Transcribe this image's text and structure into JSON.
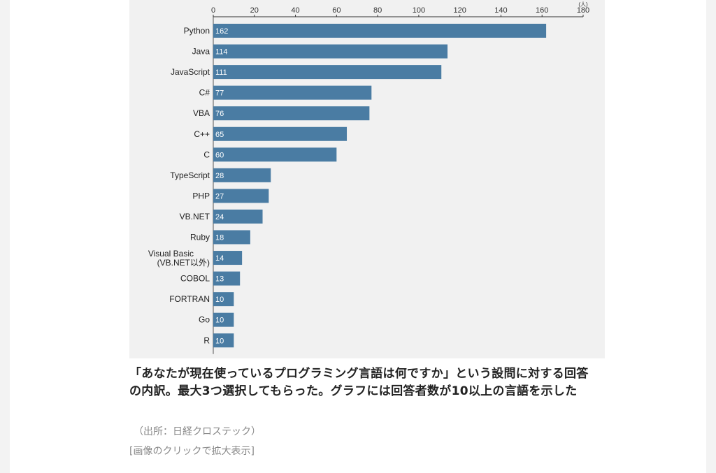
{
  "chart_data": {
    "type": "bar",
    "orientation": "horizontal",
    "unit_label": "(人)",
    "categories": [
      "Python",
      "Java",
      "JavaScript",
      "C#",
      "VBA",
      "C++",
      "C",
      "TypeScript",
      "PHP",
      "VB.NET",
      "Ruby",
      "Visual Basic\n(VB.NET以外)",
      "COBOL",
      "FORTRAN",
      "Go",
      "R"
    ],
    "values": [
      162,
      114,
      111,
      77,
      76,
      65,
      60,
      28,
      27,
      24,
      18,
      14,
      13,
      10,
      10,
      10
    ],
    "xlim": [
      0,
      180
    ],
    "xticks": [
      0,
      20,
      40,
      60,
      80,
      100,
      120,
      140,
      160,
      180
    ],
    "bar_color": "#4a7ca3",
    "grid": false,
    "legend": "none"
  },
  "caption": {
    "text": "「あなたが現在使っているプログラミング言語は何ですか」という設問に対する回答の内訳。最大3つ選択してもらった。グラフには回答者数が10以上の言語を示した",
    "source": "（出所：日経クロステック）",
    "enlarge_link": "[画像のクリックで拡大表示]"
  }
}
